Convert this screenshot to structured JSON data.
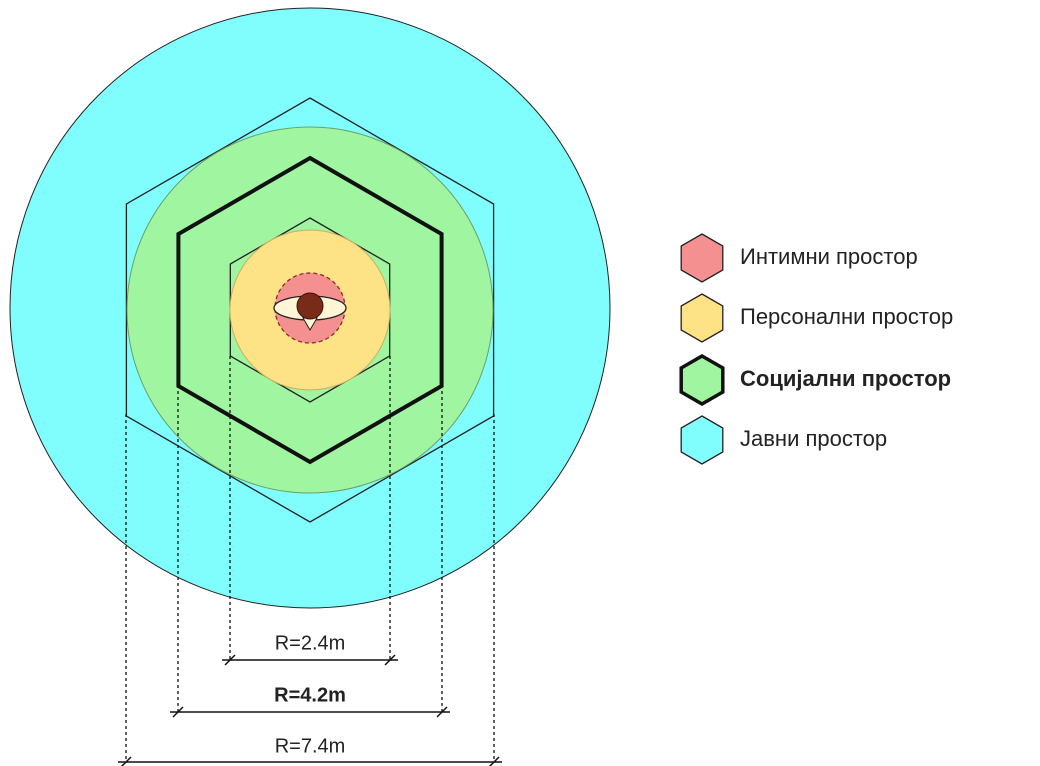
{
  "legend": {
    "items": [
      {
        "label": "Интимни простор"
      },
      {
        "label": "Персонални простор"
      },
      {
        "label": "Социјални простор"
      },
      {
        "label": "Јавни простор"
      }
    ]
  },
  "dimensions": [
    {
      "label": "R=2.4m"
    },
    {
      "label": "R=4.2m"
    },
    {
      "label": "R=7.4m"
    }
  ]
}
